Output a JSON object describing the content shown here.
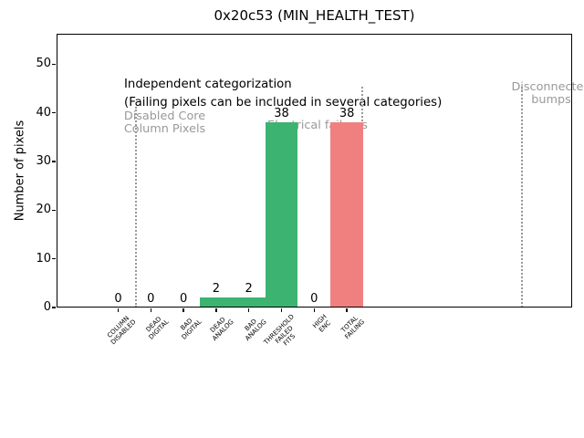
{
  "chart_data": {
    "type": "bar",
    "title": "0x20c53 (MIN_HEALTH_TEST)",
    "ylabel": "Number of pixels",
    "xlabel": "",
    "ylim": [
      0,
      56
    ],
    "yticks": [
      0,
      10,
      20,
      30,
      40,
      50
    ],
    "grid": false,
    "legend": null,
    "categories": [
      "COLUMN\nDISABLED",
      "DEAD\nDIGITAL",
      "BAD\nDIGITAL",
      "DEAD\nANALOG",
      "BAD\nANALOG",
      "THRESHOLD\nFAILED\nFITS",
      "HIGH\nENC",
      "TOTAL\nFAILING"
    ],
    "values": [
      0,
      0,
      0,
      2,
      2,
      38,
      0,
      38
    ],
    "bar_labels": [
      "0",
      "0",
      "0",
      "2",
      "2",
      "38",
      "0",
      "38"
    ],
    "bar_colors": [
      "#3cb371",
      "#3cb371",
      "#3cb371",
      "#3cb371",
      "#3cb371",
      "#3cb371",
      "#3cb371",
      "#f08080"
    ],
    "note_lines": {
      "line1": "Independent categorization",
      "line2": "(Failing pixels can be included in several categories)"
    },
    "sections": {
      "s1": "Disabled Core\nColumn Pixels",
      "s2": "Electrical failures",
      "s3": "Disconnected\nbumps"
    },
    "colors": {
      "bar_green": "#3cb371",
      "bar_red": "#f08080",
      "section_text": "#999999",
      "divider": "#999999",
      "axis": "#000000"
    }
  }
}
